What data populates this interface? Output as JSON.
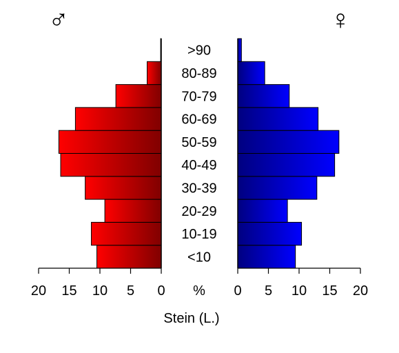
{
  "chart_data": {
    "type": "bar",
    "subtype": "population-pyramid",
    "categories": [
      "<10",
      "10-19",
      "20-29",
      "30-39",
      "40-49",
      "50-59",
      "60-69",
      "70-79",
      "80-89",
      ">90"
    ],
    "series": [
      {
        "symbol": "♂",
        "side": "left",
        "color_light": "#ff0000",
        "color_dark": "#800000",
        "values": [
          10.5,
          11.4,
          9.2,
          12.4,
          16.4,
          16.7,
          14.0,
          7.4,
          2.3,
          0.1
        ]
      },
      {
        "symbol": "♀",
        "side": "right",
        "color_light": "#0000ff",
        "color_dark": "#000080",
        "values": [
          9.4,
          10.4,
          8.1,
          12.9,
          15.8,
          16.5,
          13.1,
          8.4,
          4.4,
          0.6
        ]
      }
    ],
    "xlim": [
      0,
      20
    ],
    "ticks": [
      "20",
      "15",
      "10",
      "5",
      "0"
    ],
    "ticks_right": [
      "0",
      "5",
      "10",
      "15",
      "20"
    ],
    "unit_label": "%",
    "caption": "Stein (L.)",
    "grid": false
  }
}
